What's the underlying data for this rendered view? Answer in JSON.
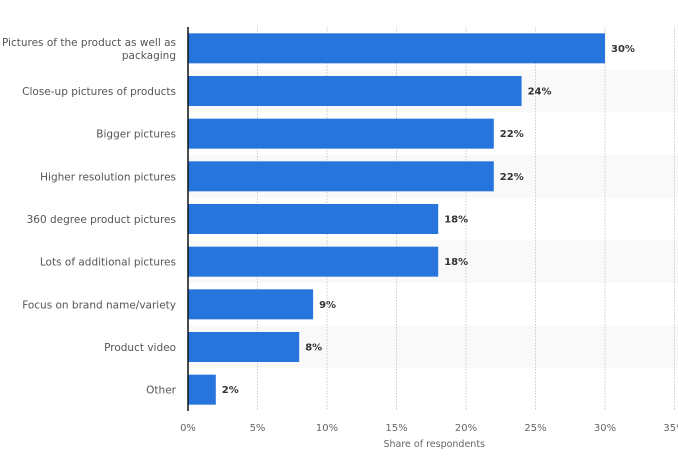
{
  "chart_data": {
    "type": "bar",
    "orientation": "horizontal",
    "categories": [
      "Pictures of the product as well as packaging",
      "Close-up pictures of products",
      "Bigger pictures",
      "Higher resolution pictures",
      "360 degree product pictures",
      "Lots of additional pictures",
      "Focus on brand name/variety",
      "Product video",
      "Other"
    ],
    "category_lines": [
      [
        "Pictures of the product as well as",
        "packaging"
      ],
      [
        "Close-up pictures of products"
      ],
      [
        "Bigger pictures"
      ],
      [
        "Higher resolution pictures"
      ],
      [
        "360 degree product pictures"
      ],
      [
        "Lots of additional pictures"
      ],
      [
        "Focus on brand name/variety"
      ],
      [
        "Product video"
      ],
      [
        "Other"
      ]
    ],
    "values": [
      30,
      24,
      22,
      22,
      18,
      18,
      9,
      8,
      2
    ],
    "value_labels": [
      "30%",
      "24%",
      "22%",
      "22%",
      "18%",
      "18%",
      "9%",
      "8%",
      "2%"
    ],
    "xlabel": "Share of respondents",
    "ylabel": "",
    "xlim": [
      0,
      35
    ],
    "ticks": [
      0,
      5,
      10,
      15,
      20,
      25,
      30,
      35
    ],
    "tick_labels": [
      "0%",
      "5%",
      "10%",
      "15%",
      "20%",
      "25%",
      "30%",
      "35%"
    ],
    "grid": true,
    "legend": "none",
    "colors": {
      "bar": "#2775dc",
      "band": "#f9f9f9",
      "grid": "#cccccc",
      "axis": "#111111"
    }
  }
}
